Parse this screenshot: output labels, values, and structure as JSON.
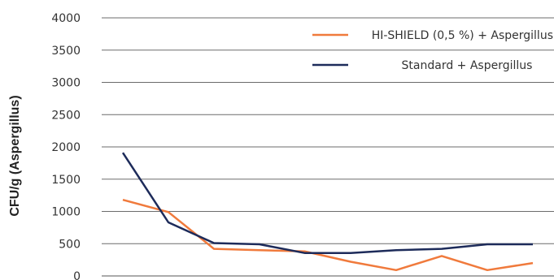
{
  "chart_data": {
    "type": "line",
    "title": "",
    "xlabel": "",
    "ylabel": "CFU/g (Aspergillus)",
    "ylim": [
      0,
      4000
    ],
    "yticks": [
      0,
      500,
      1000,
      1500,
      2000,
      2500,
      3000,
      3500,
      4000
    ],
    "grid": true,
    "legend_position": "top-right",
    "series": [
      {
        "name": "HI-SHIELD (0,5 %) + Aspergillus",
        "color": "#f07a3c",
        "values": [
          1180,
          990,
          420,
          400,
          380,
          220,
          90,
          310,
          90,
          200
        ]
      },
      {
        "name": "Standard + Aspergillus",
        "color": "#1d2b5a",
        "values": [
          1910,
          830,
          510,
          490,
          355,
          355,
          400,
          420,
          490,
          490
        ]
      }
    ]
  }
}
